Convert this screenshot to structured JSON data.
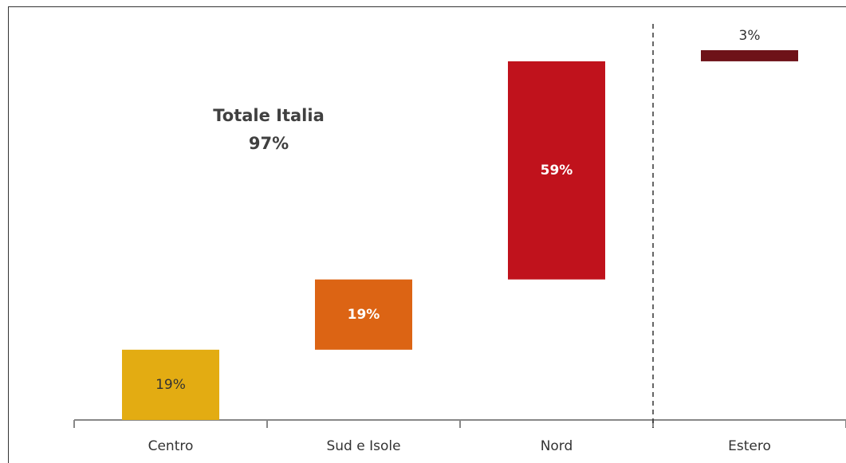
{
  "chart_data": {
    "type": "waterfall",
    "annotation": [
      "Totale Italia",
      "97%"
    ],
    "categories": [
      "Centro",
      "Sud e Isole",
      "Nord",
      "Estero"
    ],
    "values": [
      19,
      19,
      59,
      3
    ],
    "value_labels": [
      "19%",
      "19%",
      "59%",
      "3%"
    ],
    "colors": [
      "#e3ac12",
      "#dc6414",
      "#c0121c",
      "#6e1218"
    ],
    "separator_before": 3
  }
}
